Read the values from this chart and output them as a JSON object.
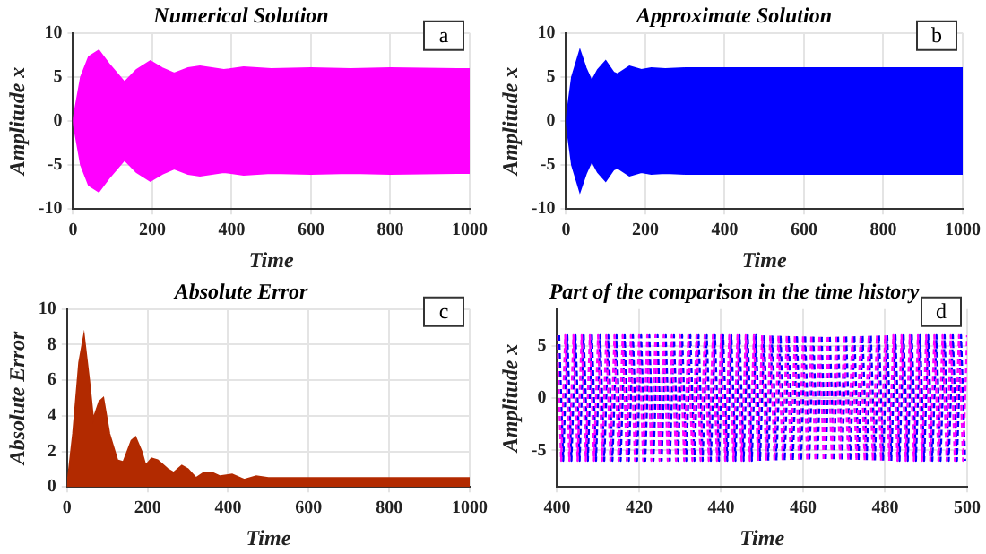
{
  "chart_data": [
    {
      "type": "area",
      "title": "Numerical Solution",
      "xlabel": "Time",
      "ylabel": "Amplitude x",
      "annotations": [
        "a"
      ],
      "xlim": [
        0,
        1000
      ],
      "xticks": [
        0,
        200,
        400,
        600,
        800,
        1000
      ],
      "ylim": [
        -10,
        10
      ],
      "yticks": [
        -10,
        -5,
        0,
        5,
        10
      ],
      "grid": true,
      "legend": false,
      "x": [
        0,
        20,
        40,
        65,
        90,
        130,
        160,
        195,
        225,
        255,
        290,
        320,
        350,
        380,
        430,
        500,
        600,
        700,
        800,
        1000
      ],
      "series": [
        {
          "color": "#ff00ff",
          "values": [
            0,
            5,
            7.3,
            8,
            6.5,
            4.4,
            5.8,
            6.8,
            6,
            5.4,
            6,
            6.2,
            6,
            5.8,
            6.1,
            5.9,
            6,
            5.9,
            6,
            5.9
          ]
        },
        {
          "color": "#ff00ff",
          "values": [
            0,
            -5,
            -7.3,
            -8,
            -6.5,
            -4.4,
            -5.8,
            -6.8,
            -6,
            -5.4,
            -6,
            -6.2,
            -6,
            -5.8,
            -6.1,
            -5.9,
            -6,
            -5.9,
            -6,
            -5.9
          ]
        }
      ]
    },
    {
      "type": "area",
      "title": "Approximate Solution",
      "xlabel": "Time",
      "ylabel": "Amplitude x",
      "annotations": [
        "b"
      ],
      "xlim": [
        0,
        1000
      ],
      "xticks": [
        0,
        200,
        400,
        600,
        800,
        1000
      ],
      "ylim": [
        -10,
        10
      ],
      "yticks": [
        -10,
        -5,
        0,
        5,
        10
      ],
      "grid": true,
      "legend": false,
      "x": [
        0,
        15,
        35,
        50,
        65,
        80,
        100,
        120,
        130,
        160,
        190,
        215,
        250,
        300,
        1000
      ],
      "series": [
        {
          "color": "#0000ff",
          "values": [
            0,
            5,
            8,
            6,
            4.5,
            5.8,
            6.8,
            5.5,
            5.3,
            6.2,
            5.8,
            6,
            5.9,
            6,
            6
          ]
        },
        {
          "color": "#0000ff",
          "values": [
            0,
            -5,
            -8,
            -6,
            -4.5,
            -5.8,
            -6.8,
            -5.5,
            -5.3,
            -6.2,
            -5.8,
            -6,
            -5.9,
            -6,
            -6
          ]
        }
      ]
    },
    {
      "type": "area",
      "title": "Absolute Error",
      "xlabel": "Time",
      "ylabel": "Absolute Error",
      "annotations": [
        "c"
      ],
      "xlim": [
        0,
        1000
      ],
      "xticks": [
        0,
        200,
        400,
        600,
        800,
        1000
      ],
      "ylim": [
        0,
        10
      ],
      "yticks": [
        0,
        2,
        4,
        6,
        8,
        10
      ],
      "grid": true,
      "legend": false,
      "x": [
        0,
        15,
        30,
        42,
        55,
        65,
        80,
        90,
        105,
        125,
        140,
        160,
        170,
        185,
        195,
        210,
        225,
        250,
        265,
        285,
        300,
        320,
        340,
        360,
        380,
        410,
        440,
        470,
        500,
        560,
        600,
        700,
        1000
      ],
      "series": [
        {
          "color": "#b22a00",
          "values": [
            0,
            3,
            7,
            8.5,
            6,
            3.8,
            4.8,
            5,
            3,
            1.5,
            1.4,
            2.6,
            2.8,
            2,
            1.2,
            1.6,
            1.5,
            1,
            0.8,
            1.2,
            1,
            0.5,
            0.8,
            0.8,
            0.6,
            0.7,
            0.4,
            0.6,
            0.5,
            0.5,
            0.5,
            0.5,
            0.5
          ]
        }
      ]
    },
    {
      "type": "line",
      "title": "Part of the comparison in the time history",
      "xlabel": "Time",
      "ylabel": "Amplitude x",
      "annotations": [
        "d"
      ],
      "xlim": [
        400,
        500
      ],
      "xticks": [
        400,
        420,
        440,
        460,
        480,
        500
      ],
      "ylim": [
        -8.5,
        8.5
      ],
      "yticks": [
        -5,
        0,
        5
      ],
      "grid": true,
      "legend": false,
      "marker": "none",
      "line_style": "dashed",
      "series": [
        {
          "color": "#ff00ff",
          "x": [
            400,
            401,
            402,
            403,
            404,
            405,
            406,
            407,
            408,
            409,
            410,
            411,
            412,
            413,
            414,
            415,
            416,
            417,
            418,
            419,
            420,
            421,
            422,
            423,
            424,
            425,
            426,
            427,
            428,
            429,
            430,
            431,
            432,
            433,
            434,
            435,
            436,
            437,
            438,
            439,
            440,
            441,
            442,
            443,
            444,
            445,
            446,
            447,
            448,
            449,
            450,
            451,
            452,
            453,
            454,
            455,
            456,
            457,
            458,
            459,
            460,
            461,
            462,
            463,
            464,
            465,
            466,
            467,
            468,
            469,
            470,
            471,
            472,
            473,
            474,
            475,
            476,
            477,
            478,
            479,
            480,
            481,
            482,
            483,
            484,
            485,
            486,
            487,
            488,
            489,
            490,
            491,
            492,
            493,
            494,
            495,
            496,
            497,
            498,
            499,
            500
          ],
          "values": [
            6,
            -6,
            6,
            -6,
            6,
            -6,
            6,
            -6,
            6,
            -6,
            6,
            -6,
            6,
            -6,
            6,
            -6,
            6,
            -6,
            6,
            -6,
            6,
            -6,
            6,
            -6,
            6,
            -6,
            6,
            -6,
            6,
            -6,
            6,
            -6,
            6,
            -6,
            6,
            -6,
            6,
            -6,
            6,
            -6,
            6,
            -6,
            6,
            -6,
            6,
            -6,
            6,
            -6,
            6,
            -6,
            6,
            -6,
            6,
            -6,
            6,
            -6,
            6,
            -6,
            6,
            -6,
            6,
            -6,
            6,
            -6,
            6,
            -6,
            6,
            -6,
            6,
            -6,
            6,
            -6,
            6,
            -6,
            6,
            -6,
            6,
            -6,
            6,
            -6,
            6,
            -6,
            6,
            -6,
            6,
            -6,
            6,
            -6,
            6,
            -6,
            6,
            -6,
            6,
            -6,
            6,
            -6,
            6,
            -6,
            6,
            -6,
            6
          ]
        },
        {
          "color": "#0000ff",
          "x": [
            400.5,
            401.5,
            402.5,
            403.5,
            404.5,
            405.5,
            406.5,
            407.5,
            408.5,
            409.5,
            410.5,
            411.5,
            412.5,
            413.5,
            414.5,
            415.5,
            416.5,
            417.5,
            418.5,
            419.5,
            420.5,
            421.5,
            422.5,
            423.5,
            424.5,
            425.5,
            426.5,
            427.5,
            428.5,
            429.5,
            430.5,
            431.5,
            432.5,
            433.5,
            434.5,
            435.5,
            436.5,
            437.5,
            438.5,
            439.5,
            440.5,
            441.5,
            442.5,
            443.5,
            444.5,
            445.5,
            446.5,
            447.5,
            448.5,
            449.5,
            450.5,
            451.5,
            452.5,
            453.5,
            454.5,
            455.5,
            456.5,
            457.5,
            458.5,
            459.5,
            460.5,
            461.5,
            462.5,
            463.5,
            464.5,
            465.5,
            466.5,
            467.5,
            468.5,
            469.5,
            470.5,
            471.5,
            472.5,
            473.5,
            474.5,
            475.5,
            476.5,
            477.5,
            478.5,
            479.5,
            480.5,
            481.5,
            482.5,
            483.5,
            484.5,
            485.5,
            486.5,
            487.5,
            488.5,
            489.5,
            490.5,
            491.5,
            492.5,
            493.5,
            494.5,
            495.5,
            496.5,
            497.5,
            498.5,
            499.5
          ],
          "values": [
            6,
            -6,
            6,
            -6,
            6,
            -6,
            6,
            -6,
            6,
            -6,
            6,
            -6,
            6,
            -6,
            6,
            -6,
            6,
            -6,
            6,
            -6,
            6,
            -6,
            6,
            -6,
            6,
            -6,
            6,
            -6,
            6,
            -6,
            6,
            -6,
            6,
            -6,
            6,
            -6,
            6,
            -6,
            6,
            -6,
            6,
            -6,
            6,
            -6,
            6,
            -6,
            6,
            -6,
            6,
            -6,
            6,
            -6,
            6,
            -6,
            6,
            -6,
            6,
            -6,
            6,
            -6,
            6,
            -6,
            6,
            -6,
            6,
            -6,
            6,
            -6,
            6,
            -6,
            6,
            -6,
            6,
            -6,
            6,
            -6,
            6,
            -6,
            6,
            -6,
            6,
            -6,
            6,
            -6,
            6,
            -6,
            6,
            -6,
            6,
            -6,
            6,
            -6,
            6,
            -6,
            6,
            -6,
            6,
            -6,
            6,
            -6
          ]
        }
      ]
    }
  ]
}
